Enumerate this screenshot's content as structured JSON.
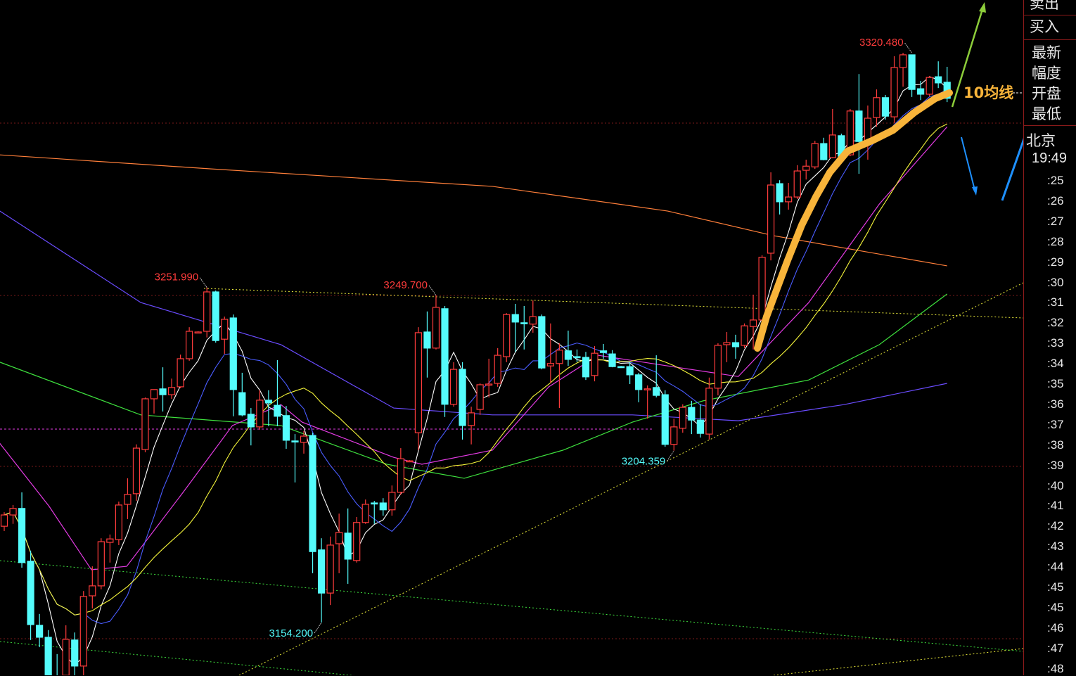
{
  "colors": {
    "up": "#ff3c3c",
    "down": "#54fcfc",
    "ma5": "#ffffff",
    "ma10": "#4a5cff",
    "ma20": "#f5f53a",
    "magenta": "#e33be3",
    "green": "#3ee03e",
    "violet": "#6a4cff",
    "orange": "#ff7f3a",
    "annotation": "#f8b43a",
    "arrow_green": "#8ccc3a",
    "arrow_blue": "#1e90ff",
    "grid": "#7a1a1a"
  },
  "chart_data": {
    "type": "candlestick",
    "ylim": [
      3138.8,
      3335.9
    ],
    "candles": [
      [
        3182.3,
        3185.6,
        3186.4,
        3180.9
      ],
      [
        3185.6,
        3187.5,
        3188.5,
        3183.0
      ],
      [
        3187.5,
        3171.7,
        3192.2,
        3170.2
      ],
      [
        3172.1,
        3153.6,
        3175.2,
        3149.1
      ],
      [
        3153.4,
        3149.9,
        3156.7,
        3147.0
      ],
      [
        3149.9,
        3135.7,
        3152.0,
        3132.7
      ],
      [
        3137.8,
        3132.7,
        3145.0,
        3130.6
      ],
      [
        3138.8,
        3149.3,
        3153.4,
        3135.7
      ],
      [
        3149.1,
        3141.5,
        3151.3,
        3137.8
      ],
      [
        3141.5,
        3161.8,
        3163.4,
        3137.8
      ],
      [
        3162.0,
        3164.9,
        3170.6,
        3158.3
      ],
      [
        3164.9,
        3177.8,
        3178.8,
        3163.9
      ],
      [
        3177.6,
        3178.6,
        3179.9,
        3171.7
      ],
      [
        3178.4,
        3188.5,
        3189.5,
        3176.8
      ],
      [
        3188.7,
        3191.6,
        3196.3,
        3184.4
      ],
      [
        3191.8,
        3205.1,
        3206.2,
        3189.7
      ],
      [
        3204.7,
        3219.5,
        3219.9,
        3203.9
      ],
      [
        3219.5,
        3222.2,
        3222.2,
        3215.2
      ],
      [
        3222.4,
        3220.7,
        3228.7,
        3215.8
      ],
      [
        3220.7,
        3222.8,
        3225.4,
        3219.5
      ],
      [
        3223.0,
        3231.2,
        3232.4,
        3222.6
      ],
      [
        3231.2,
        3239.2,
        3240.4,
        3230.6
      ],
      [
        3238.8,
        3239.0,
        3239.2,
        3238.6
      ],
      [
        3239.2,
        3250.7,
        3251.99,
        3237.4
      ],
      [
        3250.7,
        3236.5,
        3251.1,
        3235.9
      ],
      [
        3236.9,
        3242.7,
        3243.5,
        3232.6
      ],
      [
        3243.1,
        3222.2,
        3244.1,
        3214.4
      ],
      [
        3221.3,
        3214.8,
        3227.1,
        3214.4
      ],
      [
        3215.0,
        3211.3,
        3216.8,
        3205.9
      ],
      [
        3211.3,
        3219.1,
        3222.0,
        3210.5
      ],
      [
        3219.1,
        3218.3,
        3222.0,
        3211.5
      ],
      [
        3217.6,
        3214.4,
        3230.8,
        3211.5
      ],
      [
        3214.6,
        3207.4,
        3217.4,
        3204.9
      ],
      [
        3207.2,
        3207.0,
        3209.2,
        3195.1
      ],
      [
        3206.8,
        3208.6,
        3210.1,
        3203.5
      ],
      [
        3208.8,
        3174.9,
        3209.6,
        3168.6
      ],
      [
        3175.4,
        3162.8,
        3178.8,
        3154.2
      ],
      [
        3162.8,
        3176.8,
        3179.3,
        3159.3
      ],
      [
        3177.2,
        3180.5,
        3186.0,
        3168.6
      ],
      [
        3180.3,
        3172.7,
        3187.5,
        3165.5
      ],
      [
        3172.3,
        3183.4,
        3185.0,
        3171.7
      ],
      [
        3183.4,
        3188.7,
        3190.1,
        3183.0
      ],
      [
        3189.1,
        3188.9,
        3189.7,
        3183.0
      ],
      [
        3189.1,
        3187.1,
        3190.5,
        3185.4
      ],
      [
        3187.1,
        3192.2,
        3194.2,
        3185.4
      ],
      [
        3192.2,
        3202.0,
        3205.1,
        3191.5
      ],
      [
        3201.2,
        3201.4,
        3201.6,
        3201.0
      ],
      [
        3209.6,
        3238.8,
        3240.4,
        3204.5
      ],
      [
        3239.0,
        3234.3,
        3245.0,
        3225.7
      ],
      [
        3234.3,
        3246.2,
        3249.7,
        3233.9
      ],
      [
        3245.8,
        3217.9,
        3246.6,
        3214.2
      ],
      [
        3217.9,
        3228.1,
        3230.2,
        3217.2
      ],
      [
        3228.1,
        3211.7,
        3230.2,
        3207.6
      ],
      [
        3211.7,
        3215.4,
        3217.2,
        3206.2
      ],
      [
        3216.4,
        3223.6,
        3224.0,
        3214.8
      ],
      [
        3223.6,
        3223.8,
        3231.2,
        3219.9
      ],
      [
        3224.0,
        3232.2,
        3234.3,
        3223.0
      ],
      [
        3231.8,
        3244.1,
        3244.5,
        3230.2
      ],
      [
        3244.1,
        3241.9,
        3247.2,
        3233.2
      ],
      [
        3241.7,
        3241.5,
        3246.6,
        3233.9
      ],
      [
        3241.3,
        3243.5,
        3248.2,
        3238.8
      ],
      [
        3243.5,
        3228.5,
        3244.1,
        3228.1
      ],
      [
        3229.1,
        3229.8,
        3241.5,
        3224.0
      ],
      [
        3229.8,
        3233.7,
        3235.7,
        3216.8
      ],
      [
        3233.5,
        3231.0,
        3239.4,
        3229.1
      ],
      [
        3231.8,
        3231.6,
        3233.9,
        3230.2
      ],
      [
        3231.6,
        3225.9,
        3233.2,
        3225.0
      ],
      [
        3226.3,
        3232.8,
        3234.9,
        3224.6
      ],
      [
        3233.5,
        3233.0,
        3235.5,
        3231.2
      ],
      [
        3232.6,
        3228.9,
        3233.7,
        3228.7
      ],
      [
        3228.9,
        3228.7,
        3229.1,
        3228.5
      ],
      [
        3228.9,
        3226.5,
        3230.2,
        3223.8
      ],
      [
        3226.5,
        3222.2,
        3227.1,
        3218.5
      ],
      [
        3222.2,
        3222.4,
        3223.4,
        3213.7
      ],
      [
        3222.8,
        3220.5,
        3232.2,
        3219.9
      ],
      [
        3220.7,
        3206.2,
        3222.0,
        3205.5
      ],
      [
        3206.2,
        3211.3,
        3213.7,
        3204.359
      ],
      [
        3210.9,
        3217.0,
        3217.9,
        3209.6
      ],
      [
        3217.0,
        3213.3,
        3218.9,
        3209.2
      ],
      [
        3213.3,
        3209.4,
        3217.9,
        3208.2
      ],
      [
        3209.2,
        3222.6,
        3225.7,
        3207.6
      ],
      [
        3222.6,
        3235.1,
        3235.7,
        3220.5
      ],
      [
        3235.3,
        3235.9,
        3239.0,
        3230.2
      ],
      [
        3235.9,
        3234.7,
        3238.2,
        3231.2
      ],
      [
        3235.1,
        3240.8,
        3241.5,
        3234.3
      ],
      [
        3240.6,
        3242.5,
        3249.9,
        3233.9
      ],
      [
        3242.5,
        3260.8,
        3261.4,
        3237.4
      ],
      [
        3262.0,
        3281.9,
        3285.6,
        3259.9
      ],
      [
        3282.3,
        3277.0,
        3283.3,
        3273.3
      ],
      [
        3277.0,
        3278.4,
        3282.5,
        3274.7
      ],
      [
        3278.4,
        3286.0,
        3287.7,
        3277.8
      ],
      [
        3286.2,
        3287.4,
        3289.3,
        3283.5
      ],
      [
        3287.2,
        3294.0,
        3294.8,
        3286.6
      ],
      [
        3294.0,
        3289.3,
        3295.7,
        3289.1
      ],
      [
        3289.9,
        3296.5,
        3304.1,
        3289.7
      ],
      [
        3296.3,
        3290.3,
        3296.9,
        3289.7
      ],
      [
        3290.7,
        3303.5,
        3304.1,
        3290.3
      ],
      [
        3303.5,
        3294.6,
        3314.3,
        3285.2
      ],
      [
        3294.6,
        3301.4,
        3305.1,
        3289.3
      ],
      [
        3301.6,
        3307.4,
        3309.8,
        3298.9
      ],
      [
        3307.4,
        3302.0,
        3308.2,
        3301.0
      ],
      [
        3301.8,
        3316.2,
        3319.5,
        3300.0
      ],
      [
        3316.2,
        3319.9,
        3320.48,
        3310.6
      ],
      [
        3319.9,
        3309.8,
        3319.9,
        3307.6
      ],
      [
        3310.0,
        3308.4,
        3312.3,
        3306.7
      ],
      [
        3308.4,
        3313.3,
        3313.7,
        3307.8
      ],
      [
        3313.5,
        3311.7,
        3318.0,
        3310.2
      ],
      [
        3311.9,
        3307.2,
        3316.4,
        3306.1
      ]
    ],
    "moving_averages": [
      {
        "period": 5,
        "color": "ma5"
      },
      {
        "period": 10,
        "color": "ma10"
      },
      {
        "period": 20,
        "color": "ma20"
      }
    ],
    "long_lines": [
      {
        "color": "orange",
        "points": [
          [
            -0.5,
            3290.7
          ],
          [
            23.5,
            3286.6
          ],
          [
            55.4,
            3281.5
          ],
          [
            75.3,
            3274.3
          ],
          [
            87.3,
            3267.1
          ],
          [
            107,
            3258.3
          ]
        ]
      },
      {
        "color": "violet",
        "points": [
          [
            -0.5,
            3274.3
          ],
          [
            15.5,
            3247.6
          ],
          [
            31.4,
            3235.3
          ],
          [
            44.2,
            3216.8
          ],
          [
            55.4,
            3214.8
          ],
          [
            71.3,
            3214.8
          ],
          [
            83.3,
            3213.1
          ],
          [
            95.3,
            3217.8
          ],
          [
            107,
            3224.0
          ]
        ]
      },
      {
        "color": "green",
        "points": [
          [
            -0.5,
            3230.2
          ],
          [
            15.5,
            3214.8
          ],
          [
            31.4,
            3211.7
          ],
          [
            43.4,
            3200.4
          ],
          [
            52.2,
            3196.3
          ],
          [
            63.4,
            3204.5
          ],
          [
            71.3,
            3212.7
          ],
          [
            79.3,
            3218.9
          ],
          [
            91.3,
            3225.0
          ],
          [
            99.3,
            3235.3
          ],
          [
            107,
            3250.1
          ]
        ]
      },
      {
        "color": "magenta",
        "points": [
          [
            -0.5,
            3206.5
          ],
          [
            5.1,
            3188.1
          ],
          [
            9.9,
            3169.6
          ],
          [
            13.9,
            3170.6
          ],
          [
            20.3,
            3192.2
          ],
          [
            25.9,
            3211.7
          ],
          [
            31.4,
            3217.8
          ],
          [
            33.8,
            3212.7
          ],
          [
            44.2,
            3202.4
          ],
          [
            47.4,
            3200.4
          ],
          [
            55.4,
            3204.5
          ],
          [
            61.8,
            3223.0
          ],
          [
            67.4,
            3232.2
          ],
          [
            75.3,
            3229.1
          ],
          [
            83.3,
            3226.0
          ],
          [
            91.3,
            3247.6
          ],
          [
            99.3,
            3276.3
          ],
          [
            107,
            3298.9
          ]
        ]
      }
    ],
    "extreme_labels": [
      {
        "text": "3320.480",
        "index": 103,
        "price": 3320.48,
        "kind": "high"
      },
      {
        "text": "3251.990",
        "index": 23,
        "price": 3251.99,
        "kind": "high"
      },
      {
        "text": "3249.700",
        "index": 49,
        "price": 3249.7,
        "kind": "high"
      },
      {
        "text": "3154.200",
        "index": 36,
        "price": 3154.2,
        "kind": "low"
      },
      {
        "text": "3204.359",
        "index": 76,
        "price": 3204.359,
        "kind": "low"
      }
    ],
    "annotation": {
      "text": "10均线"
    }
  },
  "quote_panel": {
    "sell": "卖出",
    "buy": "买入",
    "fields": [
      "最新",
      "幅度",
      "开盘",
      "最低"
    ],
    "city": "北京",
    "time": "19:49",
    "ticks": [
      ":25",
      ":26",
      ":27",
      ":28",
      ":29",
      ":30",
      ":31",
      ":32",
      ":33",
      ":34",
      ":35",
      ":36",
      ":37",
      ":38",
      ":39",
      ":40",
      ":41",
      ":42",
      ":43",
      ":44",
      ":45",
      ":45",
      ":46",
      ":47",
      ":48"
    ]
  }
}
